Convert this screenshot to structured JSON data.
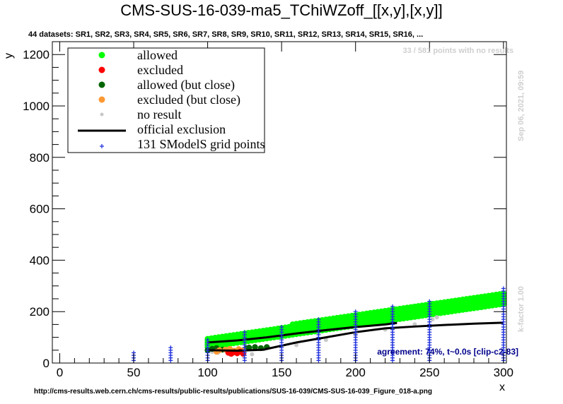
{
  "chart_data": {
    "type": "scatter",
    "title": "CMS-SUS-16-039-ma5_TChiWZoff_[[x,y],[x,y]]",
    "subtitle": "44 datasets: SR1, SR2, SR3, SR4, SR5, SR6, SR7, SR8, SR9, SR10, SR11, SR12, SR13, SR14, SR15, SR16,  ...",
    "xlabel": "x",
    "ylabel": "y",
    "xlim": [
      -5,
      302
    ],
    "ylim": [
      0,
      1250
    ],
    "x_ticks": [
      "0",
      "50",
      "100",
      "150",
      "200",
      "250",
      "300"
    ],
    "y_ticks": [
      "0",
      "200",
      "400",
      "600",
      "800",
      "1000",
      "1200"
    ],
    "no_result_note": "33 / 581 points with no results",
    "timestamp": "Sep 06, 2021, 09:59",
    "kfactor": "k-factor 1.00",
    "agreement": "agreement: 74%, t~0.0s [clip-c2-83]",
    "url": "http://cms-results.web.cern.ch/cms-results/public-results/publications/SUS-16-039/CMS-SUS-16-039_Figure_018-a.png",
    "legend": {
      "placement": "top-left",
      "entries": [
        {
          "label": "allowed",
          "color": "#00ff00",
          "marker": "dot"
        },
        {
          "label": "excluded",
          "color": "#ff0000",
          "marker": "dot"
        },
        {
          "label": "allowed (but close)",
          "color": "#006400",
          "marker": "dot"
        },
        {
          "label": "excluded (but close)",
          "color": "#ff9933",
          "marker": "dot"
        },
        {
          "label": "no result",
          "color": "#c8c8c8",
          "marker": "small-dot"
        },
        {
          "label": "official exclusion",
          "color": "#000000",
          "marker": "line"
        },
        {
          "label": "131 SModelS grid points",
          "color": "#2233dd",
          "marker": "cross"
        }
      ]
    },
    "series": [
      {
        "name": "allowed",
        "band": {
          "x": [
            100,
            300
          ],
          "y_low": [
            62,
            230
          ],
          "y_high": [
            100,
            275
          ]
        }
      },
      {
        "name": "excluded",
        "points": [
          [
            114,
            40
          ],
          [
            116,
            36
          ],
          [
            118,
            42
          ],
          [
            120,
            38
          ],
          [
            122,
            44
          ],
          [
            124,
            36
          ]
        ]
      },
      {
        "name": "allowed (but close)",
        "points": [
          [
            100,
            50
          ],
          [
            103,
            55
          ],
          [
            106,
            58
          ],
          [
            110,
            52
          ],
          [
            126,
            56
          ],
          [
            128,
            60
          ],
          [
            132,
            62
          ],
          [
            136,
            58
          ],
          [
            140,
            62
          ]
        ]
      },
      {
        "name": "excluded (but close)",
        "points": [
          [
            106,
            44
          ],
          [
            108,
            50
          ],
          [
            112,
            52
          ],
          [
            115,
            55
          ],
          [
            118,
            48
          ],
          [
            121,
            54
          ],
          [
            124,
            50
          ]
        ]
      },
      {
        "name": "no result",
        "points": [
          [
            103,
            44
          ],
          [
            107,
            40
          ],
          [
            115,
            33
          ],
          [
            120,
            34
          ],
          [
            130,
            34
          ],
          [
            160,
            70
          ],
          [
            180,
            90
          ],
          [
            200,
            110
          ],
          [
            220,
            130
          ],
          [
            240,
            150
          ],
          [
            252,
            170
          ],
          [
            255,
            178
          ]
        ]
      },
      {
        "name": "official exclusion",
        "lines": [
          [
            [
              100,
              80
            ],
            [
              120,
              88
            ],
            [
              140,
              100
            ],
            [
              160,
              115
            ],
            [
              180,
              128
            ],
            [
              200,
              140
            ],
            [
              220,
              150
            ],
            [
              228,
              156
            ]
          ],
          [
            [
              100,
              50
            ],
            [
              120,
              48
            ],
            [
              138,
              52
            ],
            [
              140,
              55
            ],
            [
              160,
              80
            ],
            [
              180,
              100
            ],
            [
              200,
              120
            ],
            [
              220,
              135
            ],
            [
              240,
              142
            ],
            [
              260,
              148
            ],
            [
              280,
              153
            ],
            [
              300,
              157
            ]
          ]
        ]
      },
      {
        "name": "131 SModelS grid points",
        "x": [
          50,
          75,
          100,
          125,
          150,
          175,
          200,
          225,
          250,
          300
        ],
        "y_max": [
          40,
          65,
          90,
          120,
          140,
          170,
          200,
          220,
          240,
          290
        ]
      }
    ]
  }
}
